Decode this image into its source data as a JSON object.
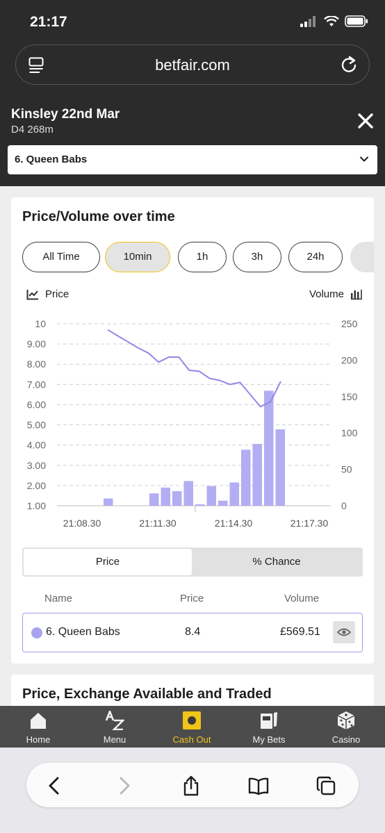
{
  "status_bar": {
    "time": "21:17"
  },
  "browser": {
    "url": "betfair.com"
  },
  "market": {
    "title": "Kinsley 22nd Mar",
    "subtitle": "D4 268m",
    "selected_runner": "6. Queen Babs"
  },
  "chart_card": {
    "title": "Price/Volume over time",
    "time_ranges": [
      "All Time",
      "10min",
      "1h",
      "3h",
      "24h"
    ],
    "active_range": "10min",
    "legend_price": "Price",
    "legend_volume": "Volume"
  },
  "chart_data": {
    "type": "line+bar",
    "x_tick_labels": [
      "21:08.30",
      "21:11.30",
      "21:14.30",
      "21:17.30"
    ],
    "y_left_ticks": [
      "10",
      "9.00",
      "8.00",
      "7.00",
      "6.00",
      "5.00",
      "4.00",
      "3.00",
      "2.00",
      "1.00"
    ],
    "y_right_ticks": [
      "250",
      "200",
      "150",
      "100",
      "50",
      "0"
    ],
    "y_right_range": [
      0,
      250
    ],
    "grid": true,
    "series": [
      {
        "kind": "line",
        "axis": "left",
        "color": "#8f87e6",
        "values": [
          9.7,
          9.4,
          9.1,
          8.8,
          8.55,
          8.1,
          8.35,
          8.35,
          7.7,
          7.65,
          7.3,
          7.2,
          7.0,
          7.1,
          6.5,
          5.9,
          6.15,
          7.15
        ]
      },
      {
        "kind": "bar",
        "axis": "right",
        "color": "#b3adf3",
        "values": [
          0,
          0,
          0,
          0,
          10,
          0,
          0,
          0,
          17,
          25,
          20,
          34,
          2,
          27,
          7,
          32,
          77,
          85,
          158,
          105
        ]
      }
    ]
  },
  "odds_toggle": {
    "price_label": "Price",
    "chance_label": "% Chance",
    "active": "Price"
  },
  "table": {
    "headers": {
      "name": "Name",
      "price": "Price",
      "volume": "Volume"
    },
    "rows": [
      {
        "name": "6. Queen Babs",
        "price": "8.4",
        "volume": "£569.51",
        "color": "#a9a2ee"
      }
    ]
  },
  "second_card": {
    "title": "Price, Exchange Available and Traded"
  },
  "bottom_nav": {
    "items": [
      {
        "label": "Home",
        "icon": "home-icon"
      },
      {
        "label": "Menu",
        "icon": "az-menu-icon"
      },
      {
        "label": "Cash Out",
        "icon": "cash-out-icon"
      },
      {
        "label": "My Bets",
        "icon": "my-bets-icon"
      },
      {
        "label": "Casino",
        "icon": "dice-icon"
      }
    ],
    "active": "Cash Out",
    "active_color": "#f0c419"
  }
}
